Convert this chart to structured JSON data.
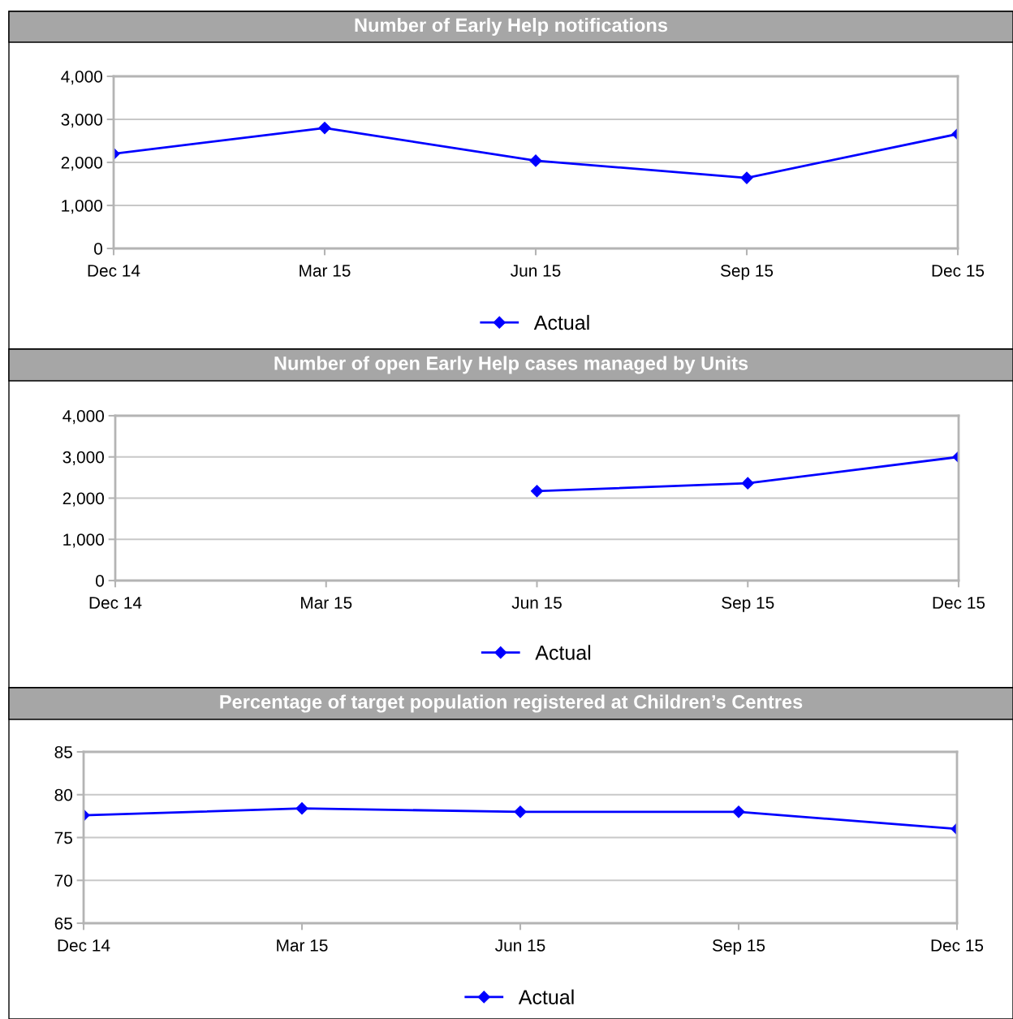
{
  "chart_data": [
    {
      "type": "line",
      "title": "Number of Early Help notifications",
      "categories": [
        "Dec 14",
        "Mar 15",
        "Jun 15",
        "Sep 15",
        "Dec 15"
      ],
      "series": [
        {
          "name": "Actual",
          "color": "#0000ff",
          "values": [
            2200,
            2800,
            2040,
            1640,
            2660
          ]
        }
      ],
      "ylim": [
        0,
        4000
      ],
      "yticks": [
        0,
        {
          "value": 1000,
          "label": "1,000"
        },
        {
          "value": 2000,
          "label": "2,000"
        },
        {
          "value": 3000,
          "label": "3,000"
        },
        {
          "value": 4000,
          "label": "4,000"
        }
      ],
      "grid": "y",
      "legend": "bottom",
      "marker": "diamond",
      "line_style": "solid"
    },
    {
      "type": "line",
      "title": "Number of open Early Help cases managed by Units",
      "categories": [
        "Dec 14",
        "Mar 15",
        "Jun 15",
        "Sep 15",
        "Dec 15"
      ],
      "series": [
        {
          "name": "Actual",
          "color": "#0000ff",
          "values": [
            null,
            null,
            2170,
            2360,
            3000
          ]
        }
      ],
      "ylim": [
        0,
        4000
      ],
      "yticks": [
        0,
        {
          "value": 1000,
          "label": "1,000"
        },
        {
          "value": 2000,
          "label": "2,000"
        },
        {
          "value": 3000,
          "label": "3,000"
        },
        {
          "value": 4000,
          "label": "4,000"
        }
      ],
      "grid": "y",
      "legend": "bottom",
      "marker": "diamond",
      "line_style": "solid"
    },
    {
      "type": "line",
      "title": "Percentage of target population registered at Children’s Centres",
      "categories": [
        "Dec 14",
        "Mar 15",
        "Jun 15",
        "Sep 15",
        "Dec 15"
      ],
      "series": [
        {
          "name": "Actual",
          "color": "#0000ff",
          "values": [
            77.6,
            78.4,
            78.0,
            78.0,
            76.0
          ]
        }
      ],
      "ylim": [
        65,
        85
      ],
      "yticks": [
        65,
        70,
        75,
        80,
        85
      ],
      "grid": "y",
      "legend": "bottom",
      "marker": "diamond",
      "line_style": "solid"
    }
  ]
}
